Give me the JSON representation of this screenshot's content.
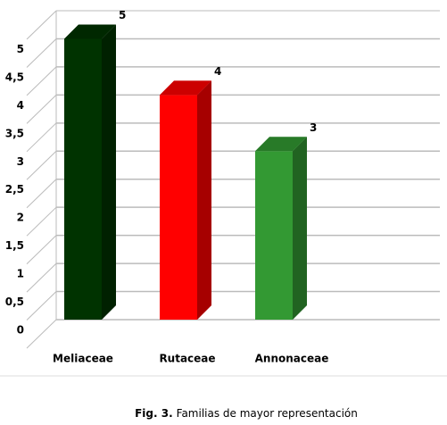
{
  "chart_data": {
    "type": "bar3d",
    "categories": [
      "Meliaceae",
      "Rutaceae",
      "Annonaceae"
    ],
    "values": [
      5,
      4,
      3
    ],
    "colors": [
      "#003300",
      "#ff0000",
      "#339933"
    ],
    "ylim": [
      0,
      5.5
    ],
    "yticks": [
      0,
      {
        "value": 0.5,
        "label": "0,5"
      },
      1,
      {
        "value": 1.5,
        "label": "1,5"
      },
      2,
      {
        "value": 2.5,
        "label": "2,5"
      },
      3,
      {
        "value": 3.5,
        "label": "3,5"
      },
      4,
      {
        "value": 4.5,
        "label": "4,5"
      },
      5
    ],
    "grid": true,
    "caption_label": "Fig. 3.",
    "caption": "Familias de mayor representación"
  }
}
